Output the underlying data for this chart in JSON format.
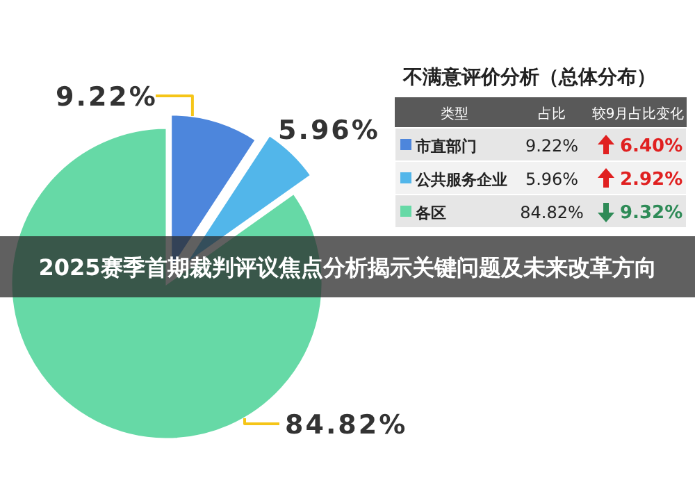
{
  "chart_data": {
    "type": "pie",
    "title": "2025赛季首期裁判评议焦点分析揭示关键问题及未来改革方向",
    "subtitle": "不满意评价分析（总体分布）",
    "categories": [
      "市直部门",
      "公共服务企业",
      "各区"
    ],
    "values": [
      9.22,
      5.96,
      84.82
    ],
    "legend": "right",
    "colors": [
      "#4d86dc",
      "#52b6ea",
      "#66d9a6"
    ],
    "value_labels": [
      "9.22%",
      "5.96%",
      "84.82%"
    ],
    "annotations": [
      "类型",
      "占比",
      "较9月占比变化",
      "6.40%",
      "2.92%",
      "9.32%"
    ]
  }
}
